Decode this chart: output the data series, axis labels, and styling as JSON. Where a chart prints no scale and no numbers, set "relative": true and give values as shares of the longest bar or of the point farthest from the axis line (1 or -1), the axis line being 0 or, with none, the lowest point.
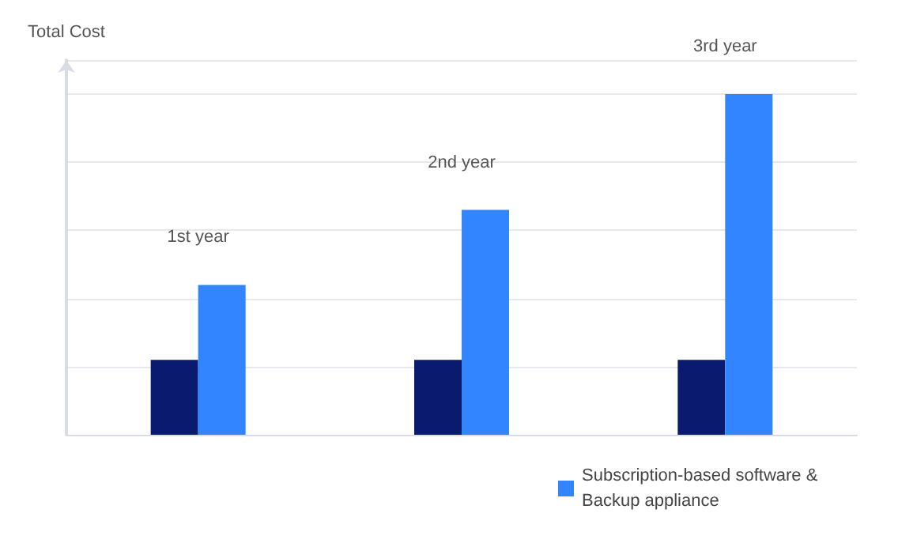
{
  "chart_data": {
    "type": "bar",
    "relative": true,
    "ylabel": "Total Cost",
    "categories": [
      "1st year",
      "2nd year",
      "3rd year"
    ],
    "series": [
      {
        "color": "#0a1a6e",
        "values": [
          0.22,
          0.22,
          0.22
        ]
      },
      {
        "name": "Subscription-based software & Backup appliance",
        "color": "#3384ff",
        "values": [
          0.44,
          0.66,
          1
        ]
      }
    ],
    "grid": "y",
    "legend": "bottom"
  }
}
